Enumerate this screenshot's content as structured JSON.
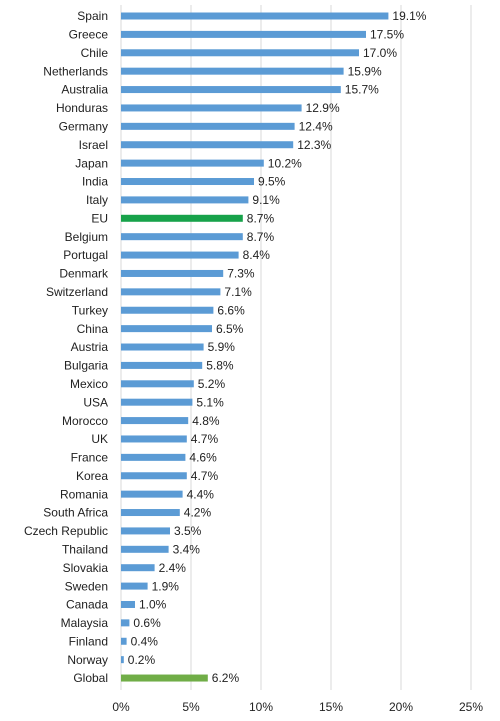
{
  "chart_data": {
    "type": "hbar",
    "categories": [
      "Spain",
      "Greece",
      "Chile",
      "Netherlands",
      "Australia",
      "Honduras",
      "Germany",
      "Israel",
      "Japan",
      "India",
      "Italy",
      "EU",
      "Belgium",
      "Portugal",
      "Denmark",
      "Switzerland",
      "Turkey",
      "China",
      "Austria",
      "Bulgaria",
      "Mexico",
      "USA",
      "Morocco",
      "UK",
      "France",
      "Korea",
      "Romania",
      "South Africa",
      "Czech Republic",
      "Thailand",
      "Slovakia",
      "Sweden",
      "Canada",
      "Malaysia",
      "Finland",
      "Norway",
      "Global"
    ],
    "values": [
      19.1,
      17.5,
      17.0,
      15.9,
      15.7,
      12.9,
      12.4,
      12.3,
      10.2,
      9.5,
      9.1,
      8.7,
      8.7,
      8.4,
      7.3,
      7.1,
      6.6,
      6.5,
      5.9,
      5.8,
      5.2,
      5.1,
      4.8,
      4.7,
      4.6,
      4.7,
      4.4,
      4.2,
      3.5,
      3.4,
      2.4,
      1.9,
      1.0,
      0.6,
      0.4,
      0.2,
      6.2
    ],
    "value_labels": [
      "19.1%",
      "17.5%",
      "17.0%",
      "15.9%",
      "15.7%",
      "12.9%",
      "12.4%",
      "12.3%",
      "10.2%",
      "9.5%",
      "9.1%",
      "8.7%",
      "8.7%",
      "8.4%",
      "7.3%",
      "7.1%",
      "6.6%",
      "6.5%",
      "5.9%",
      "5.8%",
      "5.2%",
      "5.1%",
      "4.8%",
      "4.7%",
      "4.6%",
      "4.7%",
      "4.4%",
      "4.2%",
      "3.5%",
      "3.4%",
      "2.4%",
      "1.9%",
      "1.0%",
      "0.6%",
      "0.4%",
      "0.2%",
      "6.2%"
    ],
    "colors": [
      "#5b9bd5",
      "#5b9bd5",
      "#5b9bd5",
      "#5b9bd5",
      "#5b9bd5",
      "#5b9bd5",
      "#5b9bd5",
      "#5b9bd5",
      "#5b9bd5",
      "#5b9bd5",
      "#5b9bd5",
      "#17a24a",
      "#5b9bd5",
      "#5b9bd5",
      "#5b9bd5",
      "#5b9bd5",
      "#5b9bd5",
      "#5b9bd5",
      "#5b9bd5",
      "#5b9bd5",
      "#5b9bd5",
      "#5b9bd5",
      "#5b9bd5",
      "#5b9bd5",
      "#5b9bd5",
      "#5b9bd5",
      "#5b9bd5",
      "#5b9bd5",
      "#5b9bd5",
      "#5b9bd5",
      "#5b9bd5",
      "#5b9bd5",
      "#5b9bd5",
      "#5b9bd5",
      "#5b9bd5",
      "#5b9bd5",
      "#70ad47"
    ],
    "xlim": [
      0,
      25
    ],
    "xticks": [
      {
        "value": 0,
        "label": "0%"
      },
      {
        "value": 5,
        "label": "5%"
      },
      {
        "value": 10,
        "label": "10%"
      },
      {
        "value": 15,
        "label": "15%"
      },
      {
        "value": 20,
        "label": "20%"
      },
      {
        "value": 25,
        "label": "25%"
      }
    ],
    "grid": true
  }
}
